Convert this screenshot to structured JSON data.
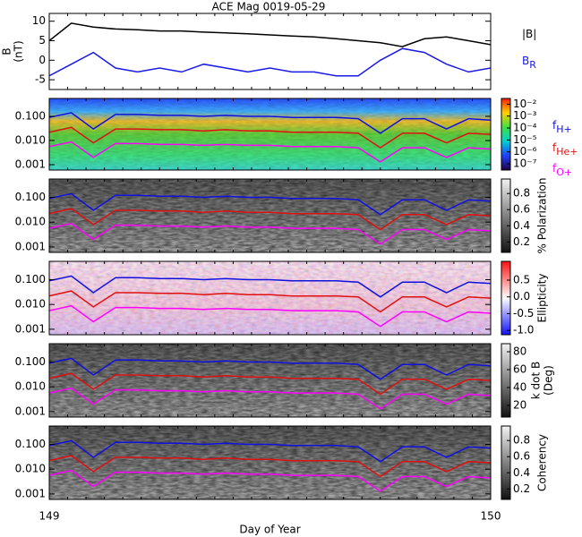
{
  "chart_data": [
    {
      "type": "line",
      "title": "ACE Mag 0019-05-29",
      "ylabel": [
        "B",
        "(nT)"
      ],
      "xlim": [
        149,
        150
      ],
      "ylim": [
        -7.5,
        12
      ],
      "yticks": [
        10,
        5,
        0,
        -5
      ],
      "x": [
        149.0,
        149.05,
        149.1,
        149.15,
        149.2,
        149.25,
        149.3,
        149.35,
        149.4,
        149.45,
        149.5,
        149.55,
        149.6,
        149.65,
        149.7,
        149.75,
        149.8,
        149.85,
        149.9,
        149.95,
        150.0
      ],
      "series": [
        {
          "name": "|B|",
          "color": "#000000",
          "values": [
            5,
            9.5,
            8.5,
            8,
            7.8,
            7.5,
            7.5,
            7.2,
            7,
            6.8,
            6.5,
            6.2,
            6,
            5.5,
            5,
            4.5,
            3.5,
            5.5,
            6,
            5,
            4
          ]
        },
        {
          "name": "B",
          "subscript": "R",
          "color": "#1a1ae6",
          "values": [
            -4,
            -1,
            2,
            -2,
            -3,
            -2,
            -3,
            -1,
            -2,
            -3,
            -2,
            -3,
            -3,
            -4,
            -4,
            0,
            3,
            2,
            -1,
            -3,
            -2
          ]
        }
      ]
    },
    {
      "type": "spectrogram",
      "colormap": "rainbow",
      "clog": true,
      "clim": [
        3e-08,
        0.03
      ],
      "cticks": [
        {
          "value": 0.01,
          "label": "10⁻²"
        },
        {
          "value": 0.001,
          "label": "10⁻³"
        },
        {
          "value": 0.0001,
          "label": "10⁻⁴"
        },
        {
          "value": 1e-05,
          "label": "10⁻⁵"
        },
        {
          "value": 1e-06,
          "label": "10⁻⁶"
        },
        {
          "value": 1e-07,
          "label": "10⁻⁷"
        }
      ],
      "xlim": [
        149,
        150
      ],
      "ylog": true,
      "ylim": [
        0.0006,
        0.55
      ],
      "yticks": [
        {
          "value": 0.1,
          "label": "0.100"
        },
        {
          "value": 0.01,
          "label": "0.010"
        },
        {
          "value": 0.001,
          "label": "0.001"
        }
      ],
      "x": [
        149.0,
        149.05,
        149.1,
        149.15,
        149.2,
        149.25,
        149.3,
        149.35,
        149.4,
        149.45,
        149.5,
        149.55,
        149.6,
        149.65,
        149.7,
        149.75,
        149.8,
        149.85,
        149.9,
        149.95,
        150.0
      ],
      "series": [
        {
          "name": "f",
          "subscript": "H+",
          "color": "#1010e0",
          "values": [
            0.09,
            0.14,
            0.03,
            0.12,
            0.12,
            0.11,
            0.11,
            0.1,
            0.11,
            0.1,
            0.1,
            0.09,
            0.09,
            0.09,
            0.08,
            0.02,
            0.08,
            0.08,
            0.03,
            0.08,
            0.07
          ]
        },
        {
          "name": "f",
          "subscript": "He+",
          "color": "#e01010",
          "values": [
            0.022,
            0.035,
            0.008,
            0.03,
            0.03,
            0.028,
            0.028,
            0.025,
            0.028,
            0.025,
            0.025,
            0.022,
            0.022,
            0.022,
            0.02,
            0.005,
            0.02,
            0.02,
            0.008,
            0.02,
            0.018
          ]
        },
        {
          "name": "f",
          "subscript": "O+",
          "color": "#ff00ff",
          "values": [
            0.0056,
            0.0088,
            0.002,
            0.0075,
            0.0075,
            0.0069,
            0.0069,
            0.0063,
            0.0069,
            0.0063,
            0.0063,
            0.0056,
            0.0056,
            0.0056,
            0.005,
            0.0013,
            0.005,
            0.005,
            0.002,
            0.005,
            0.0044
          ]
        }
      ]
    },
    {
      "type": "spectrogram",
      "colormap": "gray",
      "clabel": [
        "% Polarization"
      ],
      "clim": [
        0.07,
        0.98
      ],
      "cticks": [
        0.8,
        0.6,
        0.4,
        0.2
      ],
      "xlim": [
        149,
        150
      ],
      "ylog": true,
      "ylim": [
        0.0006,
        0.55
      ],
      "yticks": [
        {
          "value": 0.1,
          "label": "0.100"
        },
        {
          "value": 0.01,
          "label": "0.010"
        },
        {
          "value": 0.001,
          "label": "0.001"
        }
      ]
    },
    {
      "type": "spectrogram",
      "colormap": "bwr",
      "clabel": [
        "Ellipticity"
      ],
      "clim": [
        -1.13,
        1.06
      ],
      "cticks": [
        0.5,
        {
          "value": 0,
          "label": "0.0"
        },
        -0.5,
        {
          "value": -1,
          "label": "-1.0"
        }
      ],
      "xlim": [
        149,
        150
      ],
      "ylog": true,
      "ylim": [
        0.0006,
        0.55
      ],
      "yticks": [
        {
          "value": 0.1,
          "label": "0.100"
        },
        {
          "value": 0.01,
          "label": "0.010"
        },
        {
          "value": 0.001,
          "label": "0.001"
        }
      ]
    },
    {
      "type": "spectrogram",
      "colormap": "gray",
      "clabel": [
        "k dot B",
        "(Deg)"
      ],
      "clim": [
        7,
        89
      ],
      "cticks": [
        80,
        60,
        40,
        20
      ],
      "xlim": [
        149,
        150
      ],
      "ylog": true,
      "ylim": [
        0.0006,
        0.55
      ],
      "yticks": [
        {
          "value": 0.1,
          "label": "0.100"
        },
        {
          "value": 0.01,
          "label": "0.010"
        },
        {
          "value": 0.001,
          "label": "0.001"
        }
      ]
    },
    {
      "type": "spectrogram",
      "colormap": "gray",
      "clabel": [
        "Coherency"
      ],
      "clim": [
        0.07,
        0.98
      ],
      "cticks": [
        0.8,
        0.6,
        0.4,
        0.2
      ],
      "xlim": [
        149,
        150
      ],
      "ylog": true,
      "ylim": [
        0.0006,
        0.55
      ],
      "yticks": [
        {
          "value": 0.1,
          "label": "0.100"
        },
        {
          "value": 0.01,
          "label": "0.010"
        },
        {
          "value": 0.001,
          "label": "0.001"
        }
      ],
      "xticks": [
        149,
        150
      ],
      "xlabel": "Day of Year"
    }
  ]
}
